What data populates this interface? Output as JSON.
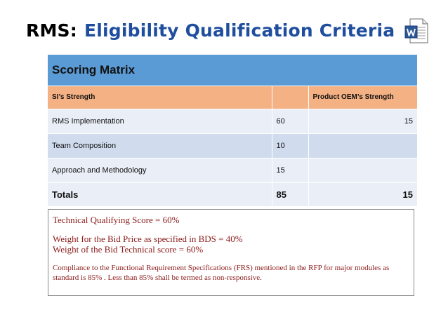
{
  "slide": {
    "title_prefix": "RMS:",
    "title_main": "Eligibility Qualification Criteria",
    "icon": "word-document-icon"
  },
  "matrix": {
    "title": "Scoring Matrix",
    "headers": [
      "SI’s Strength",
      "",
      "Product OEM’s Strength"
    ],
    "rows": [
      {
        "label": "RMS Implementation",
        "si_score": "60",
        "oem_score": "15"
      },
      {
        "label": "Team Composition",
        "si_score": "10",
        "oem_score": ""
      },
      {
        "label": "Approach and Methodology",
        "si_score": "15",
        "oem_score": ""
      }
    ],
    "totals": {
      "label": "Totals",
      "si_score": "85",
      "oem_score": "15"
    }
  },
  "notes": {
    "qualifying": "Technical Qualifying Score = 60%",
    "bid_price": "Weight for the Bid Price as specified in BDS = 40%",
    "bid_technical": "Weight of the Bid Technical score = 60%",
    "compliance_1": "Compliance to the Functional Requirement Specifications (FRS)  mentioned in the RFP for major modules as",
    "compliance_2": "standard is 85% .  Less than 85% shall be termed as non-responsive."
  },
  "colors": {
    "title_blue": "#1f4e9e",
    "header_blue": "#5b9bd5",
    "header_orange": "#f4b183",
    "row_light": "#e9eef7",
    "row_mid": "#d0dcee",
    "note_text": "#8b1a1a"
  }
}
